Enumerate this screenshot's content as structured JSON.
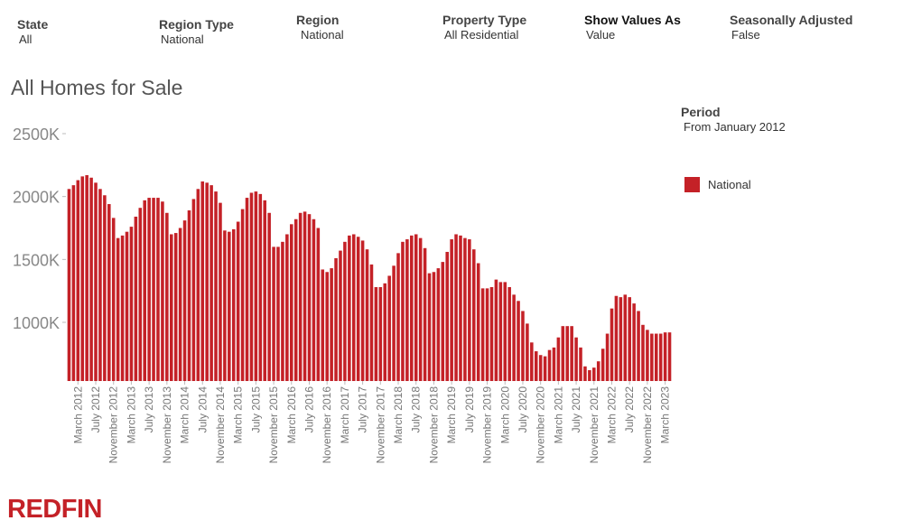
{
  "filters": [
    {
      "label": "State",
      "value": "All"
    },
    {
      "label": "Region Type",
      "value": "National"
    },
    {
      "label": "Region",
      "value": "National"
    },
    {
      "label": "Property Type",
      "value": "All Residential"
    },
    {
      "label": "Show Values As",
      "value": "Value"
    },
    {
      "label": "Seasonally Adjusted",
      "value": "False"
    }
  ],
  "period": {
    "label": "Period",
    "value": "From January 2012"
  },
  "legend": {
    "label": "National"
  },
  "logo": {
    "text": "REDFIN"
  },
  "colors": {
    "bar": "#c42127",
    "logo": "#c42127",
    "axis": "#777777"
  },
  "chart_data": {
    "type": "bar",
    "title": "All Homes for Sale",
    "xlabel": "",
    "ylabel": "",
    "ylim": [
      550,
      2600
    ],
    "y_ticks": [
      1000,
      1500,
      2000,
      2500
    ],
    "y_tick_labels": [
      "1000K",
      "1500K",
      "2000K",
      "2500K"
    ],
    "y_unit": "thousands",
    "x_tick_labels": [
      "March 2012",
      "July 2012",
      "November 2012",
      "March 2013",
      "July 2013",
      "November 2013",
      "March 2014",
      "July 2014",
      "November 2014",
      "March 2015",
      "July 2015",
      "November 2015",
      "March 2016",
      "July 2016",
      "November 2016",
      "March 2017",
      "July 2017",
      "November 2017",
      "March 2018",
      "July 2018",
      "November 2018",
      "March 2019",
      "July 2019",
      "November 2019",
      "March 2020",
      "July 2020",
      "November 2020",
      "March 2021",
      "July 2021",
      "November 2021",
      "March 2022",
      "July 2022",
      "November 2022",
      "March 2023"
    ],
    "start_month": "January 2012",
    "series": [
      {
        "name": "National",
        "values": [
          2060,
          2090,
          2130,
          2160,
          2170,
          2150,
          2110,
          2060,
          2010,
          1940,
          1830,
          1670,
          1690,
          1720,
          1760,
          1840,
          1910,
          1970,
          1990,
          1990,
          1990,
          1960,
          1870,
          1700,
          1710,
          1750,
          1810,
          1890,
          1980,
          2060,
          2120,
          2110,
          2090,
          2040,
          1950,
          1730,
          1720,
          1740,
          1800,
          1900,
          1990,
          2030,
          2040,
          2020,
          1970,
          1870,
          1600,
          1600,
          1640,
          1700,
          1780,
          1820,
          1870,
          1880,
          1860,
          1820,
          1750,
          1420,
          1400,
          1430,
          1510,
          1570,
          1640,
          1690,
          1700,
          1680,
          1650,
          1580,
          1460,
          1280,
          1280,
          1310,
          1370,
          1450,
          1550,
          1640,
          1660,
          1690,
          1700,
          1670,
          1590,
          1390,
          1400,
          1430,
          1480,
          1560,
          1660,
          1700,
          1690,
          1670,
          1660,
          1580,
          1470,
          1270,
          1270,
          1280,
          1340,
          1320,
          1320,
          1280,
          1220,
          1170,
          1090,
          990,
          840,
          770,
          740,
          730,
          780,
          800,
          880,
          970,
          970,
          970,
          880,
          800,
          650,
          620,
          640,
          690,
          790,
          910,
          1110,
          1210,
          1200,
          1220,
          1200,
          1150,
          1090,
          980,
          940,
          910,
          910,
          910,
          920,
          920
        ]
      }
    ]
  }
}
